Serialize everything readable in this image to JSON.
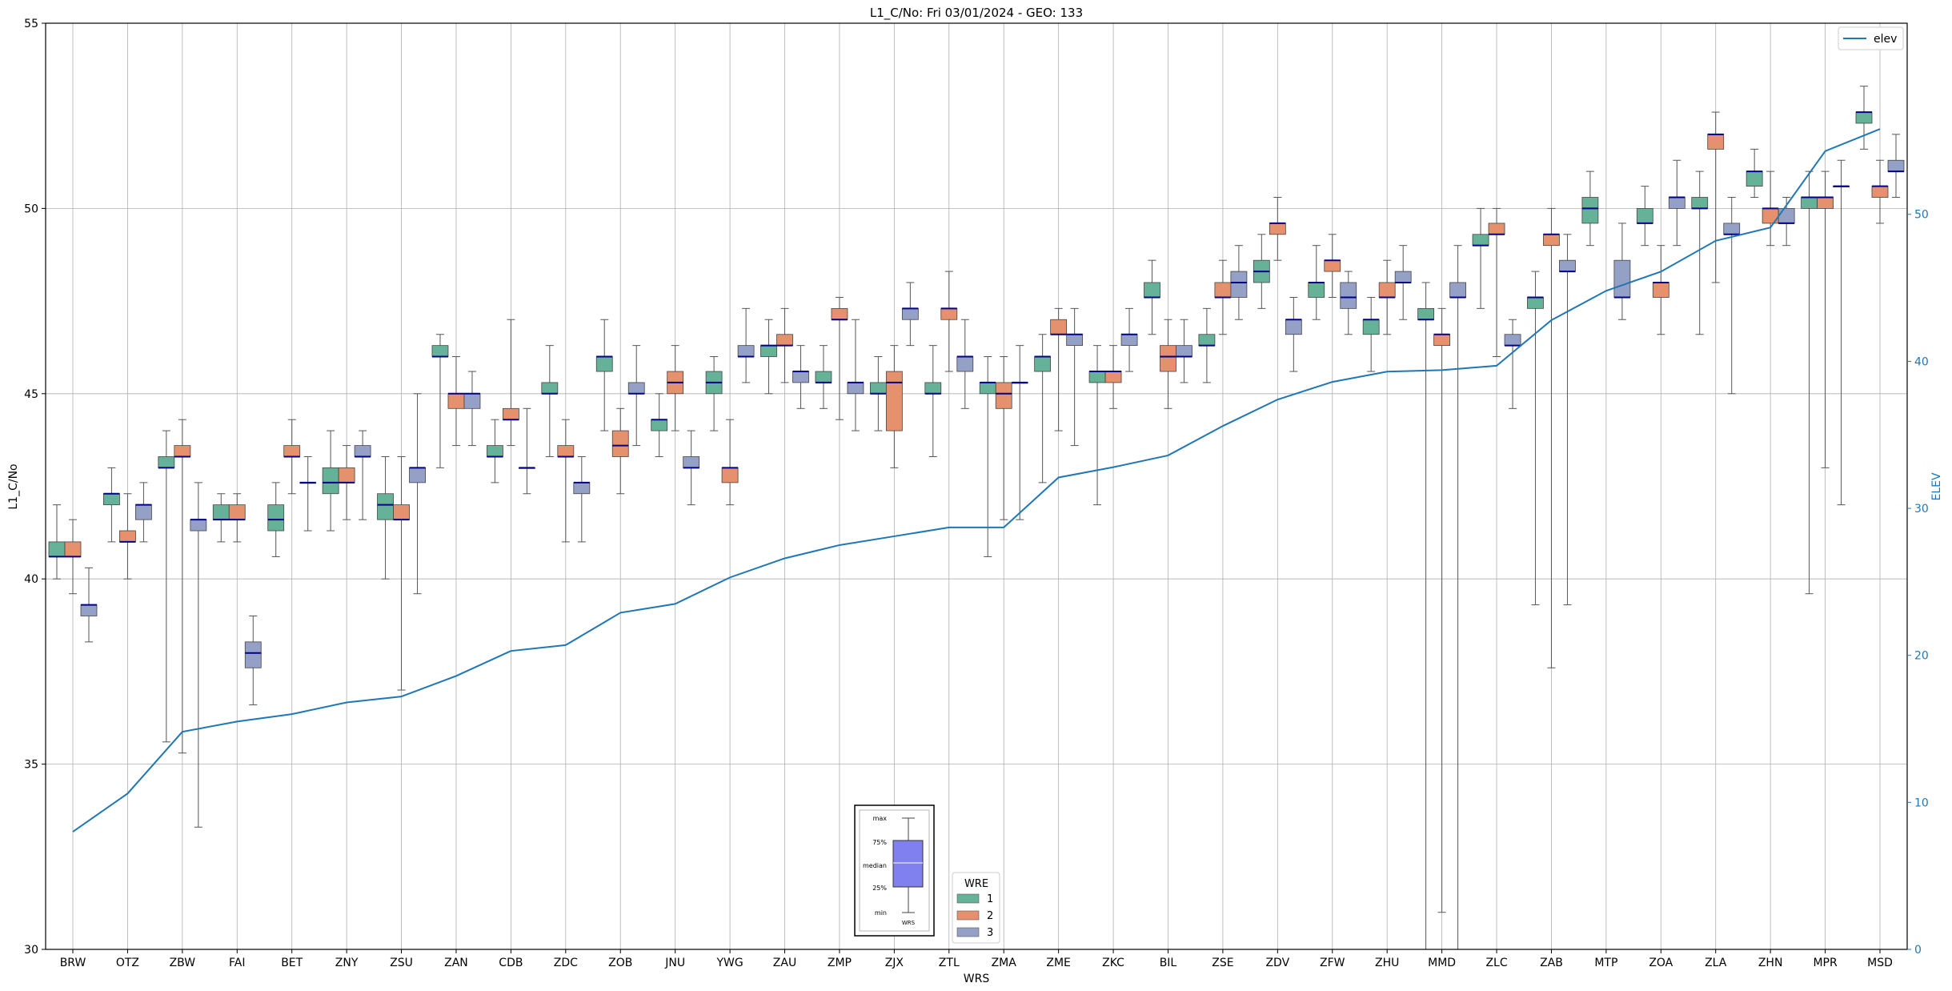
{
  "chart_data": {
    "type": "boxplot",
    "title": "L1_C/No: Fri 03/01/2024 - GEO: 133",
    "xlabel": "WRS",
    "ylabel": "L1_C/No",
    "y2label": "ELEV",
    "ylim": [
      30,
      55
    ],
    "y2lim": [
      0,
      63
    ],
    "yticks": [
      30,
      35,
      40,
      45,
      50,
      55
    ],
    "y2ticks": [
      0,
      10,
      20,
      30,
      40,
      50
    ],
    "grid": true,
    "categories": [
      "BRW",
      "OTZ",
      "ZBW",
      "FAI",
      "BET",
      "ZNY",
      "ZSU",
      "ZAN",
      "CDB",
      "ZDC",
      "ZOB",
      "JNU",
      "YWG",
      "ZAU",
      "ZMP",
      "ZJX",
      "ZTL",
      "ZMA",
      "ZME",
      "ZKC",
      "BIL",
      "ZSE",
      "ZDV",
      "ZFW",
      "ZHU",
      "MMD",
      "ZLC",
      "ZAB",
      "MTP",
      "ZOA",
      "ZLA",
      "ZHN",
      "MPR",
      "MSD"
    ],
    "box_legend": {
      "title": "WRE",
      "entries": [
        {
          "label": "1",
          "color": "#66b298"
        },
        {
          "label": "2",
          "color": "#e5916e"
        },
        {
          "label": "3",
          "color": "#95a0c6"
        }
      ]
    },
    "line_legend": {
      "label": "elev",
      "color": "#1f77b4"
    },
    "inset_labels": [
      "max",
      "75%",
      "median",
      "25%",
      "min",
      "WRS"
    ],
    "wre_colors": {
      "1": "#66b298",
      "2": "#e5916e",
      "3": "#95a0c6"
    },
    "boxes": [
      {
        "station": "BRW",
        "wre": 1,
        "min": 40.0,
        "q1": 40.6,
        "median": 40.6,
        "q3": 41.0,
        "max": 42.0
      },
      {
        "station": "BRW",
        "wre": 2,
        "min": 39.6,
        "q1": 40.6,
        "median": 40.6,
        "q3": 41.0,
        "max": 41.6
      },
      {
        "station": "BRW",
        "wre": 3,
        "min": 38.3,
        "q1": 39.0,
        "median": 39.3,
        "q3": 39.3,
        "max": 40.3
      },
      {
        "station": "OTZ",
        "wre": 1,
        "min": 41.0,
        "q1": 42.0,
        "median": 42.3,
        "q3": 42.3,
        "max": 43.0
      },
      {
        "station": "OTZ",
        "wre": 2,
        "min": 40.0,
        "q1": 41.0,
        "median": 41.0,
        "q3": 41.3,
        "max": 42.3
      },
      {
        "station": "OTZ",
        "wre": 3,
        "min": 41.0,
        "q1": 41.6,
        "median": 42.0,
        "q3": 42.0,
        "max": 42.6
      },
      {
        "station": "ZBW",
        "wre": 1,
        "min": 35.6,
        "q1": 43.0,
        "median": 43.0,
        "q3": 43.3,
        "max": 44.0
      },
      {
        "station": "ZBW",
        "wre": 2,
        "min": 35.3,
        "q1": 43.3,
        "median": 43.3,
        "q3": 43.6,
        "max": 44.3
      },
      {
        "station": "ZBW",
        "wre": 3,
        "min": 33.3,
        "q1": 41.3,
        "median": 41.6,
        "q3": 41.6,
        "max": 42.6
      },
      {
        "station": "FAI",
        "wre": 1,
        "min": 41.0,
        "q1": 41.6,
        "median": 41.6,
        "q3": 42.0,
        "max": 42.3
      },
      {
        "station": "FAI",
        "wre": 2,
        "min": 41.0,
        "q1": 41.6,
        "median": 41.6,
        "q3": 42.0,
        "max": 42.3
      },
      {
        "station": "FAI",
        "wre": 3,
        "min": 36.6,
        "q1": 37.6,
        "median": 38.0,
        "q3": 38.3,
        "max": 39.0
      },
      {
        "station": "BET",
        "wre": 1,
        "min": 40.6,
        "q1": 41.3,
        "median": 41.6,
        "q3": 42.0,
        "max": 42.6
      },
      {
        "station": "BET",
        "wre": 2,
        "min": 42.3,
        "q1": 43.3,
        "median": 43.3,
        "q3": 43.6,
        "max": 44.3
      },
      {
        "station": "BET",
        "wre": 3,
        "min": 41.3,
        "q1": 42.6,
        "median": 42.6,
        "q3": 42.6,
        "max": 43.3
      },
      {
        "station": "ZNY",
        "wre": 1,
        "min": 41.3,
        "q1": 42.3,
        "median": 42.6,
        "q3": 43.0,
        "max": 44.0
      },
      {
        "station": "ZNY",
        "wre": 2,
        "min": 41.6,
        "q1": 42.6,
        "median": 42.6,
        "q3": 43.0,
        "max": 43.6
      },
      {
        "station": "ZNY",
        "wre": 3,
        "min": 41.6,
        "q1": 43.3,
        "median": 43.3,
        "q3": 43.6,
        "max": 44.0
      },
      {
        "station": "ZSU",
        "wre": 1,
        "min": 40.0,
        "q1": 41.6,
        "median": 42.0,
        "q3": 42.3,
        "max": 43.3
      },
      {
        "station": "ZSU",
        "wre": 2,
        "min": 37.0,
        "q1": 41.6,
        "median": 41.6,
        "q3": 42.0,
        "max": 43.3
      },
      {
        "station": "ZSU",
        "wre": 3,
        "min": 39.6,
        "q1": 42.6,
        "median": 43.0,
        "q3": 43.0,
        "max": 45.0
      },
      {
        "station": "ZAN",
        "wre": 1,
        "min": 43.0,
        "q1": 46.0,
        "median": 46.0,
        "q3": 46.3,
        "max": 46.6
      },
      {
        "station": "ZAN",
        "wre": 2,
        "min": 43.6,
        "q1": 44.6,
        "median": 45.0,
        "q3": 45.0,
        "max": 46.0
      },
      {
        "station": "ZAN",
        "wre": 3,
        "min": 43.6,
        "q1": 44.6,
        "median": 45.0,
        "q3": 45.0,
        "max": 45.6
      },
      {
        "station": "CDB",
        "wre": 1,
        "min": 42.6,
        "q1": 43.3,
        "median": 43.3,
        "q3": 43.6,
        "max": 44.3
      },
      {
        "station": "CDB",
        "wre": 2,
        "min": 43.6,
        "q1": 44.3,
        "median": 44.3,
        "q3": 44.6,
        "max": 47.0
      },
      {
        "station": "CDB",
        "wre": 3,
        "min": 42.3,
        "q1": 43.0,
        "median": 43.0,
        "q3": 43.0,
        "max": 44.6
      },
      {
        "station": "ZDC",
        "wre": 1,
        "min": 43.3,
        "q1": 45.0,
        "median": 45.0,
        "q3": 45.3,
        "max": 46.3
      },
      {
        "station": "ZDC",
        "wre": 2,
        "min": 41.0,
        "q1": 43.3,
        "median": 43.3,
        "q3": 43.6,
        "max": 44.3
      },
      {
        "station": "ZDC",
        "wre": 3,
        "min": 41.0,
        "q1": 42.3,
        "median": 42.6,
        "q3": 42.6,
        "max": 43.3
      },
      {
        "station": "ZOB",
        "wre": 1,
        "min": 44.0,
        "q1": 45.6,
        "median": 46.0,
        "q3": 46.0,
        "max": 47.0
      },
      {
        "station": "ZOB",
        "wre": 2,
        "min": 42.3,
        "q1": 43.3,
        "median": 43.6,
        "q3": 44.0,
        "max": 44.6
      },
      {
        "station": "ZOB",
        "wre": 3,
        "min": 43.6,
        "q1": 45.0,
        "median": 45.0,
        "q3": 45.3,
        "max": 46.3
      },
      {
        "station": "JNU",
        "wre": 1,
        "min": 43.3,
        "q1": 44.0,
        "median": 44.3,
        "q3": 44.3,
        "max": 45.0
      },
      {
        "station": "JNU",
        "wre": 2,
        "min": 44.0,
        "q1": 45.0,
        "median": 45.3,
        "q3": 45.6,
        "max": 46.3
      },
      {
        "station": "JNU",
        "wre": 3,
        "min": 42.0,
        "q1": 43.0,
        "median": 43.0,
        "q3": 43.3,
        "max": 44.0
      },
      {
        "station": "YWG",
        "wre": 1,
        "min": 44.0,
        "q1": 45.0,
        "median": 45.3,
        "q3": 45.6,
        "max": 46.0
      },
      {
        "station": "YWG",
        "wre": 2,
        "min": 42.0,
        "q1": 42.6,
        "median": 43.0,
        "q3": 43.0,
        "max": 44.3
      },
      {
        "station": "YWG",
        "wre": 3,
        "min": 45.3,
        "q1": 46.0,
        "median": 46.0,
        "q3": 46.3,
        "max": 47.3
      },
      {
        "station": "ZAU",
        "wre": 1,
        "min": 45.0,
        "q1": 46.0,
        "median": 46.3,
        "q3": 46.3,
        "max": 47.0
      },
      {
        "station": "ZAU",
        "wre": 2,
        "min": 45.3,
        "q1": 46.3,
        "median": 46.3,
        "q3": 46.6,
        "max": 47.3
      },
      {
        "station": "ZAU",
        "wre": 3,
        "min": 44.6,
        "q1": 45.3,
        "median": 45.6,
        "q3": 45.6,
        "max": 46.3
      },
      {
        "station": "ZMP",
        "wre": 1,
        "min": 44.6,
        "q1": 45.3,
        "median": 45.3,
        "q3": 45.6,
        "max": 46.3
      },
      {
        "station": "ZMP",
        "wre": 2,
        "min": 44.3,
        "q1": 47.0,
        "median": 47.0,
        "q3": 47.3,
        "max": 47.6
      },
      {
        "station": "ZMP",
        "wre": 3,
        "min": 44.0,
        "q1": 45.0,
        "median": 45.3,
        "q3": 45.3,
        "max": 47.0
      },
      {
        "station": "ZJX",
        "wre": 1,
        "min": 44.0,
        "q1": 45.0,
        "median": 45.0,
        "q3": 45.3,
        "max": 46.0
      },
      {
        "station": "ZJX",
        "wre": 2,
        "min": 43.0,
        "q1": 44.0,
        "median": 45.3,
        "q3": 45.6,
        "max": 46.3
      },
      {
        "station": "ZJX",
        "wre": 3,
        "min": 46.3,
        "q1": 47.0,
        "median": 47.3,
        "q3": 47.3,
        "max": 48.0
      },
      {
        "station": "ZTL",
        "wre": 1,
        "min": 43.3,
        "q1": 45.0,
        "median": 45.0,
        "q3": 45.3,
        "max": 46.3
      },
      {
        "station": "ZTL",
        "wre": 2,
        "min": 45.6,
        "q1": 47.0,
        "median": 47.3,
        "q3": 47.3,
        "max": 48.3
      },
      {
        "station": "ZTL",
        "wre": 3,
        "min": 44.6,
        "q1": 45.6,
        "median": 46.0,
        "q3": 46.0,
        "max": 47.0
      },
      {
        "station": "ZMA",
        "wre": 1,
        "min": 40.6,
        "q1": 45.0,
        "median": 45.3,
        "q3": 45.3,
        "max": 46.0
      },
      {
        "station": "ZMA",
        "wre": 2,
        "min": 41.6,
        "q1": 44.6,
        "median": 45.0,
        "q3": 45.3,
        "max": 46.0
      },
      {
        "station": "ZMA",
        "wre": 3,
        "min": 41.6,
        "q1": 45.3,
        "median": 45.3,
        "q3": 45.3,
        "max": 46.3
      },
      {
        "station": "ZME",
        "wre": 1,
        "min": 42.6,
        "q1": 45.6,
        "median": 46.0,
        "q3": 46.0,
        "max": 46.6
      },
      {
        "station": "ZME",
        "wre": 2,
        "min": 44.0,
        "q1": 46.6,
        "median": 46.6,
        "q3": 47.0,
        "max": 47.3
      },
      {
        "station": "ZME",
        "wre": 3,
        "min": 43.6,
        "q1": 46.3,
        "median": 46.6,
        "q3": 46.6,
        "max": 47.3
      },
      {
        "station": "ZKC",
        "wre": 1,
        "min": 42.0,
        "q1": 45.3,
        "median": 45.6,
        "q3": 45.6,
        "max": 46.3
      },
      {
        "station": "ZKC",
        "wre": 2,
        "min": 44.6,
        "q1": 45.3,
        "median": 45.6,
        "q3": 45.6,
        "max": 46.3
      },
      {
        "station": "ZKC",
        "wre": 3,
        "min": 45.6,
        "q1": 46.3,
        "median": 46.6,
        "q3": 46.6,
        "max": 47.3
      },
      {
        "station": "BIL",
        "wre": 1,
        "min": 46.6,
        "q1": 47.6,
        "median": 47.6,
        "q3": 48.0,
        "max": 48.6
      },
      {
        "station": "BIL",
        "wre": 2,
        "min": 44.6,
        "q1": 45.6,
        "median": 46.0,
        "q3": 46.3,
        "max": 47.0
      },
      {
        "station": "BIL",
        "wre": 3,
        "min": 45.3,
        "q1": 46.0,
        "median": 46.0,
        "q3": 46.3,
        "max": 47.0
      },
      {
        "station": "ZSE",
        "wre": 1,
        "min": 45.3,
        "q1": 46.3,
        "median": 46.3,
        "q3": 46.6,
        "max": 47.3
      },
      {
        "station": "ZSE",
        "wre": 2,
        "min": 46.6,
        "q1": 47.6,
        "median": 47.6,
        "q3": 48.0,
        "max": 48.6
      },
      {
        "station": "ZSE",
        "wre": 3,
        "min": 47.0,
        "q1": 47.6,
        "median": 48.0,
        "q3": 48.3,
        "max": 49.0
      },
      {
        "station": "ZDV",
        "wre": 1,
        "min": 47.3,
        "q1": 48.0,
        "median": 48.3,
        "q3": 48.6,
        "max": 49.3
      },
      {
        "station": "ZDV",
        "wre": 2,
        "min": 48.6,
        "q1": 49.3,
        "median": 49.6,
        "q3": 49.6,
        "max": 50.3
      },
      {
        "station": "ZDV",
        "wre": 3,
        "min": 45.6,
        "q1": 46.6,
        "median": 47.0,
        "q3": 47.0,
        "max": 47.6
      },
      {
        "station": "ZFW",
        "wre": 1,
        "min": 47.0,
        "q1": 47.6,
        "median": 48.0,
        "q3": 48.0,
        "max": 49.0
      },
      {
        "station": "ZFW",
        "wre": 2,
        "min": 47.6,
        "q1": 48.3,
        "median": 48.6,
        "q3": 48.6,
        "max": 49.3
      },
      {
        "station": "ZFW",
        "wre": 3,
        "min": 46.6,
        "q1": 47.3,
        "median": 47.6,
        "q3": 48.0,
        "max": 48.3
      },
      {
        "station": "ZHU",
        "wre": 1,
        "min": 45.6,
        "q1": 46.6,
        "median": 47.0,
        "q3": 47.0,
        "max": 47.6
      },
      {
        "station": "ZHU",
        "wre": 2,
        "min": 46.6,
        "q1": 47.6,
        "median": 47.6,
        "q3": 48.0,
        "max": 48.6
      },
      {
        "station": "ZHU",
        "wre": 3,
        "min": 47.0,
        "q1": 48.0,
        "median": 48.0,
        "q3": 48.3,
        "max": 49.0
      },
      {
        "station": "MMD",
        "wre": 1,
        "min": 30.0,
        "q1": 47.0,
        "median": 47.0,
        "q3": 47.3,
        "max": 48.0
      },
      {
        "station": "MMD",
        "wre": 2,
        "min": 31.0,
        "q1": 46.3,
        "median": 46.6,
        "q3": 46.6,
        "max": 47.3
      },
      {
        "station": "MMD",
        "wre": 3,
        "min": 30.0,
        "q1": 47.6,
        "median": 47.6,
        "q3": 48.0,
        "max": 49.0
      },
      {
        "station": "ZLC",
        "wre": 1,
        "min": 47.3,
        "q1": 49.0,
        "median": 49.0,
        "q3": 49.3,
        "max": 50.0
      },
      {
        "station": "ZLC",
        "wre": 2,
        "min": 46.0,
        "q1": 49.3,
        "median": 49.3,
        "q3": 49.6,
        "max": 50.0
      },
      {
        "station": "ZLC",
        "wre": 3,
        "min": 44.6,
        "q1": 46.3,
        "median": 46.3,
        "q3": 46.6,
        "max": 47.0
      },
      {
        "station": "ZAB",
        "wre": 1,
        "min": 39.3,
        "q1": 47.3,
        "median": 47.6,
        "q3": 47.6,
        "max": 48.3
      },
      {
        "station": "ZAB",
        "wre": 2,
        "min": 37.6,
        "q1": 49.0,
        "median": 49.3,
        "q3": 49.3,
        "max": 50.0
      },
      {
        "station": "ZAB",
        "wre": 3,
        "min": 39.3,
        "q1": 48.3,
        "median": 48.3,
        "q3": 48.6,
        "max": 49.3
      },
      {
        "station": "MTP",
        "wre": 3,
        "min": 47.0,
        "q1": 47.6,
        "median": 47.6,
        "q3": 48.6,
        "max": 49.6
      },
      {
        "station": "MTP",
        "wre": 1,
        "min": 49.0,
        "q1": 49.6,
        "median": 50.0,
        "q3": 50.3,
        "max": 51.0
      },
      {
        "station": "ZOA",
        "wre": 1,
        "min": 49.0,
        "q1": 49.6,
        "median": 49.6,
        "q3": 50.0,
        "max": 50.6
      },
      {
        "station": "ZOA",
        "wre": 2,
        "min": 46.6,
        "q1": 47.6,
        "median": 48.0,
        "q3": 48.0,
        "max": 49.0
      },
      {
        "station": "ZOA",
        "wre": 3,
        "min": 49.0,
        "q1": 50.0,
        "median": 50.3,
        "q3": 50.3,
        "max": 51.3
      },
      {
        "station": "ZLA",
        "wre": 1,
        "min": 46.6,
        "q1": 50.0,
        "median": 50.0,
        "q3": 50.3,
        "max": 51.0
      },
      {
        "station": "ZLA",
        "wre": 2,
        "min": 48.0,
        "q1": 51.6,
        "median": 52.0,
        "q3": 52.0,
        "max": 52.6
      },
      {
        "station": "ZLA",
        "wre": 3,
        "min": 45.0,
        "q1": 49.3,
        "median": 49.3,
        "q3": 49.6,
        "max": 50.3
      },
      {
        "station": "ZHN",
        "wre": 1,
        "min": 50.3,
        "q1": 50.6,
        "median": 51.0,
        "q3": 51.0,
        "max": 51.6
      },
      {
        "station": "ZHN",
        "wre": 2,
        "min": 49.0,
        "q1": 49.6,
        "median": 50.0,
        "q3": 50.0,
        "max": 51.0
      },
      {
        "station": "ZHN",
        "wre": 3,
        "min": 49.0,
        "q1": 49.6,
        "median": 49.6,
        "q3": 50.0,
        "max": 50.3
      },
      {
        "station": "MPR",
        "wre": 1,
        "min": 39.6,
        "q1": 50.0,
        "median": 50.3,
        "q3": 50.3,
        "max": 51.0
      },
      {
        "station": "MPR",
        "wre": 2,
        "min": 43.0,
        "q1": 50.0,
        "median": 50.3,
        "q3": 50.3,
        "max": 51.0
      },
      {
        "station": "MPR",
        "wre": 3,
        "min": 42.0,
        "q1": 50.6,
        "median": 50.6,
        "q3": 50.6,
        "max": 51.3
      },
      {
        "station": "MSD",
        "wre": 1,
        "min": 51.6,
        "q1": 52.3,
        "median": 52.6,
        "q3": 52.6,
        "max": 53.3
      },
      {
        "station": "MSD",
        "wre": 2,
        "min": 49.6,
        "q1": 50.3,
        "median": 50.6,
        "q3": 50.6,
        "max": 51.3
      },
      {
        "station": "MSD",
        "wre": 3,
        "min": 50.3,
        "q1": 51.0,
        "median": 51.0,
        "q3": 51.3,
        "max": 52.0
      }
    ],
    "elev_series": {
      "name": "elev",
      "values": [
        8,
        10.6,
        14.8,
        15.5,
        16,
        16.8,
        17.2,
        18.6,
        20.3,
        20.7,
        22.9,
        23.5,
        25.3,
        26.6,
        27.5,
        28.1,
        28.7,
        28.7,
        32.1,
        32.8,
        33.6,
        35.6,
        37.4,
        38.6,
        39.3,
        39.4,
        39.7,
        42.8,
        44.8,
        46.1,
        48.2,
        49.1,
        54.3,
        55.8
      ]
    }
  }
}
